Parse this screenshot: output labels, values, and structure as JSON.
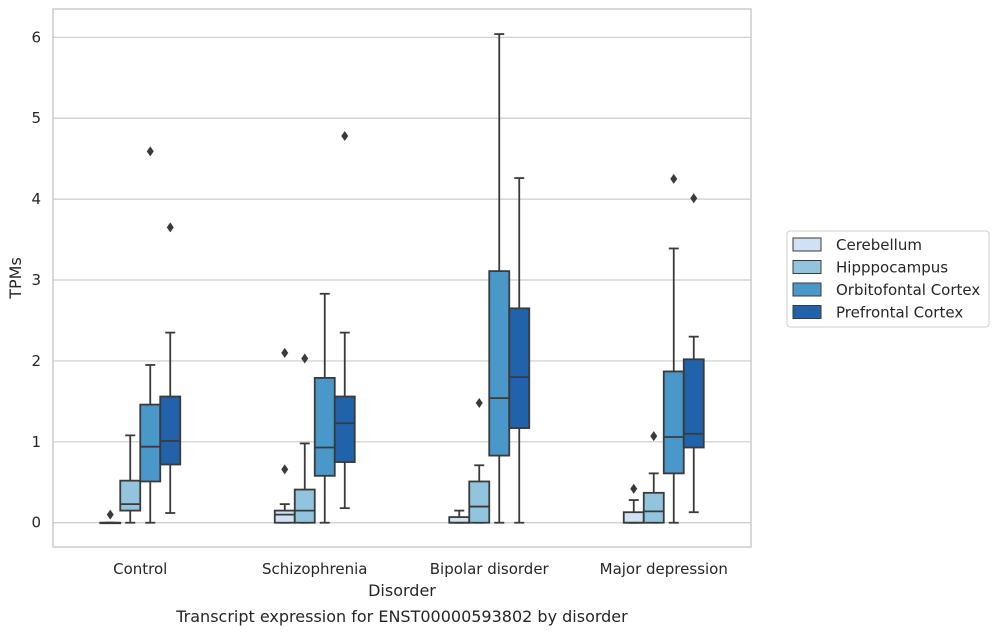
{
  "chart_data": {
    "type": "box",
    "title": "",
    "caption": "Transcript expression for ENST00000593802 by disorder",
    "xlabel": "Disorder",
    "ylabel": "TPMs",
    "ylim": [
      -0.3,
      6.35
    ],
    "yticks": [
      0,
      1,
      2,
      3,
      4,
      5,
      6
    ],
    "grid": "horizontal",
    "legend_position": "right",
    "categories": [
      "Control",
      "Schizophrenia",
      "Bipolar disorder",
      "Major depression"
    ],
    "series": [
      {
        "name": "Cerebellum",
        "color": "#cfe1f2",
        "boxes": [
          {
            "min": 0,
            "q1": 0,
            "median": 0,
            "q3": 0,
            "max": 0,
            "outliers": [
              0.1
            ]
          },
          {
            "min": 0,
            "q1": 0,
            "median": 0.1,
            "q3": 0.15,
            "max": 0.23,
            "outliers": [
              0.66,
              2.1
            ]
          },
          {
            "min": 0,
            "q1": 0,
            "median": 0,
            "q3": 0.07,
            "max": 0.15,
            "outliers": []
          },
          {
            "min": 0,
            "q1": 0,
            "median": 0,
            "q3": 0.13,
            "max": 0.28,
            "outliers": [
              0.42
            ]
          }
        ]
      },
      {
        "name": "Hipppocampus",
        "color": "#93c4de",
        "boxes": [
          {
            "min": 0,
            "q1": 0.15,
            "median": 0.23,
            "q3": 0.52,
            "max": 1.08,
            "outliers": []
          },
          {
            "min": 0,
            "q1": 0,
            "median": 0.15,
            "q3": 0.41,
            "max": 0.98,
            "outliers": [
              2.03
            ]
          },
          {
            "min": 0,
            "q1": 0,
            "median": 0.2,
            "q3": 0.51,
            "max": 0.71,
            "outliers": [
              1.48
            ]
          },
          {
            "min": 0,
            "q1": 0,
            "median": 0.14,
            "q3": 0.37,
            "max": 0.61,
            "outliers": [
              1.07
            ]
          }
        ]
      },
      {
        "name": "Orbitofontal Cortex",
        "color": "#4a98c9",
        "boxes": [
          {
            "min": 0,
            "q1": 0.51,
            "median": 0.94,
            "q3": 1.46,
            "max": 1.95,
            "outliers": [
              4.59
            ]
          },
          {
            "min": 0,
            "q1": 0.58,
            "median": 0.93,
            "q3": 1.79,
            "max": 2.83,
            "outliers": []
          },
          {
            "min": 0,
            "q1": 0.83,
            "median": 1.54,
            "q3": 3.11,
            "max": 6.04,
            "outliers": []
          },
          {
            "min": 0,
            "q1": 0.61,
            "median": 1.06,
            "q3": 1.87,
            "max": 3.39,
            "outliers": [
              4.25
            ]
          }
        ]
      },
      {
        "name": "Prefrontal Cortex",
        "color": "#2163aa",
        "boxes": [
          {
            "min": 0.12,
            "q1": 0.72,
            "median": 1.01,
            "q3": 1.56,
            "max": 2.35,
            "outliers": [
              3.65
            ]
          },
          {
            "min": 0.18,
            "q1": 0.75,
            "median": 1.23,
            "q3": 1.56,
            "max": 2.35,
            "outliers": [
              4.78
            ]
          },
          {
            "min": 0,
            "q1": 1.17,
            "median": 1.8,
            "q3": 2.65,
            "max": 4.26,
            "outliers": []
          },
          {
            "min": 0.13,
            "q1": 0.93,
            "median": 1.1,
            "q3": 2.02,
            "max": 2.3,
            "outliers": [
              4.01
            ]
          }
        ]
      }
    ]
  }
}
